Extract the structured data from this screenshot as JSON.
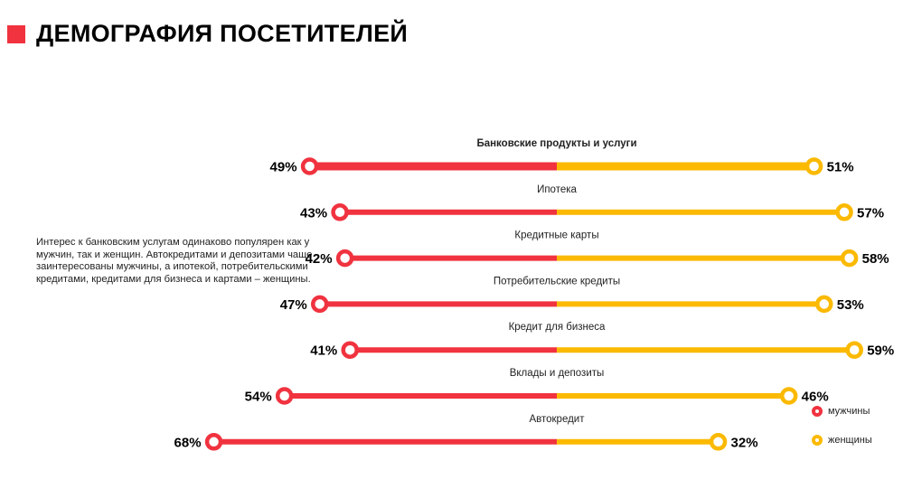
{
  "header": {
    "title": "ДЕМОГРАФИЯ ПОСЕТИТЕЛЕЙ"
  },
  "description": "Интерес к банковским услугам одинаково популярен как у мужчин, так и женщин. Автокредитами и депозитами чаще заинтересованы мужчины, а ипотекой, потребительскими кредитами, кредитами для бизнеса и картами – женщины.",
  "colors": {
    "accent": "#f0333f",
    "men": "#f0333f",
    "women": "#fbb900"
  },
  "legend": [
    {
      "label": "мужчины",
      "color": "#f0333f"
    },
    {
      "label": "женщины",
      "color": "#fbb900"
    }
  ],
  "chart_data": {
    "type": "bar",
    "subtype": "diverging-dumbbell",
    "categories": [
      "Банковские продукты и услуги",
      "Ипотека",
      "Кредитные карты",
      "Потребительские кредиты",
      "Кредит для бизнеса",
      "Вклады и депозиты",
      "Автокредит"
    ],
    "series": [
      {
        "name": "мужчины",
        "values": [
          49,
          43,
          42,
          47,
          41,
          54,
          68
        ],
        "labels": [
          "49%",
          "43%",
          "42%",
          "47%",
          "41%",
          "54%",
          "68%"
        ]
      },
      {
        "name": "женщины",
        "values": [
          51,
          57,
          58,
          53,
          59,
          46,
          32
        ],
        "labels": [
          "51%",
          "57%",
          "58%",
          "53%",
          "59%",
          "46%",
          "32%"
        ]
      }
    ],
    "unit": "%",
    "legend_position": "bottom-right"
  }
}
